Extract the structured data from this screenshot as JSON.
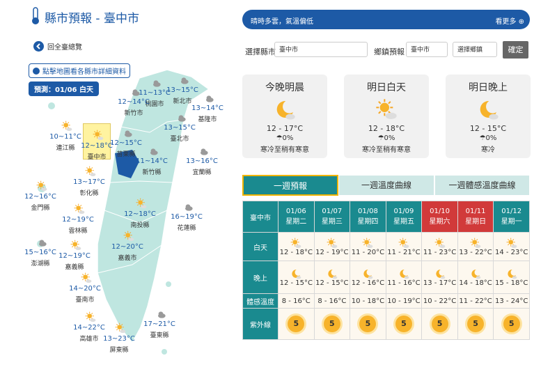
{
  "header": {
    "title": "縣市預報 - 臺中市"
  },
  "back_link": "回全臺總覽",
  "notice": "點擊地圖看各縣市詳細資料",
  "forecast_badge": "預測：01/06 白天",
  "map": {
    "regions": [
      {
        "name": "桃園市",
        "temp": "11~13°C"
      },
      {
        "name": "新北市",
        "temp": "13~15°C"
      },
      {
        "name": "新竹市",
        "temp": "12~14°C"
      },
      {
        "name": "基隆市",
        "temp": "13~14°C"
      },
      {
        "name": "連江縣",
        "temp": "10~11°C"
      },
      {
        "name": "臺中市",
        "temp": "12~18°C"
      },
      {
        "name": "苗栗縣",
        "temp": "12~15°C"
      },
      {
        "name": "臺北市",
        "temp": "13~15°C"
      },
      {
        "name": "新竹縣",
        "temp": "11~14°C"
      },
      {
        "name": "宜蘭縣",
        "temp": "13~16°C"
      },
      {
        "name": "彰化縣",
        "temp": "13~17°C"
      },
      {
        "name": "金門縣",
        "temp": "12~16°C"
      },
      {
        "name": "南投縣",
        "temp": "12~18°C"
      },
      {
        "name": "花蓮縣",
        "temp": "16~19°C"
      },
      {
        "name": "雲林縣",
        "temp": "12~19°C"
      },
      {
        "name": "澎湖縣",
        "temp": "15~16°C"
      },
      {
        "name": "嘉義縣",
        "temp": "12~19°C"
      },
      {
        "name": "嘉義市",
        "temp": "12~20°C"
      },
      {
        "name": "臺南市",
        "temp": "14~20°C"
      },
      {
        "name": "高雄市",
        "temp": "14~22°C"
      },
      {
        "name": "屏東縣",
        "temp": "13~23°C"
      },
      {
        "name": "臺東縣",
        "temp": "17~21°C"
      }
    ]
  },
  "banner": {
    "text": "晴時多雲，氣溫偏低",
    "more": "看更多"
  },
  "filters": {
    "county_label": "選擇縣市",
    "county": "臺中市",
    "town_label": "鄉鎮預報",
    "town_county": "臺中市",
    "town": "選擇鄉鎮",
    "button": "確定"
  },
  "cards": [
    {
      "title": "今晚明晨",
      "temp": "12 - 17°C",
      "rain": "0%",
      "comfort": "寒冷至稍有寒意"
    },
    {
      "title": "明日白天",
      "temp": "12 - 18°C",
      "rain": "0%",
      "comfort": "寒冷至稍有寒意"
    },
    {
      "title": "明日晚上",
      "temp": "12 - 15°C",
      "rain": "0%",
      "comfort": "寒冷"
    }
  ],
  "tabs": [
    "一週預報",
    "一週溫度曲線",
    "一週體感溫度曲線"
  ],
  "table": {
    "corner": "臺中市",
    "days": [
      {
        "date": "01/06",
        "weekday": "星期二"
      },
      {
        "date": "01/07",
        "weekday": "星期三"
      },
      {
        "date": "01/08",
        "weekday": "星期四"
      },
      {
        "date": "01/09",
        "weekday": "星期五"
      },
      {
        "date": "01/10",
        "weekday": "星期六"
      },
      {
        "date": "01/11",
        "weekday": "星期日"
      },
      {
        "date": "01/12",
        "weekday": "星期一"
      }
    ],
    "row_labels": [
      "白天",
      "晚上",
      "體感溫度",
      "紫外線"
    ],
    "day": [
      "12 - 18°C",
      "12 - 19°C",
      "11 - 20°C",
      "11 - 21°C",
      "11 - 23°C",
      "13 - 22°C",
      "14 - 23°C"
    ],
    "night": [
      "12 - 15°C",
      "12 - 15°C",
      "12 - 16°C",
      "11 - 16°C",
      "13 - 17°C",
      "14 - 18°C",
      "15 - 18°C"
    ],
    "feels": [
      "8 - 16°C",
      "8 - 16°C",
      "10 - 18°C",
      "10 - 19°C",
      "10 - 22°C",
      "11 - 22°C",
      "13 - 24°C"
    ],
    "uv": [
      5,
      5,
      5,
      5,
      5,
      5,
      5
    ]
  }
}
